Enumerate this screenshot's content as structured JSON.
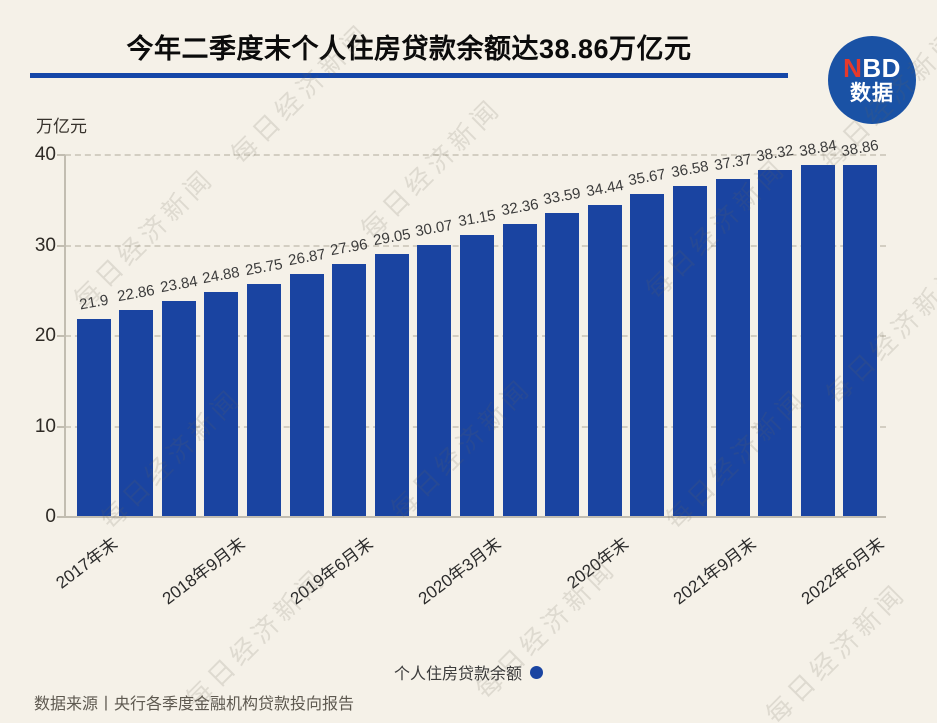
{
  "title": "今年二季度末个人住房贷款余额达38.86万亿元",
  "logo": {
    "n": "N",
    "bd": "BD",
    "line2": "数据"
  },
  "watermark_text": "每日经济新闻",
  "colors": {
    "background": "#f5f1e8",
    "bar": "#1a44a1",
    "accent_blue": "#1547a8",
    "logo_blue": "#1a52a5",
    "logo_red": "#e6392b",
    "grid": "#d3cec2",
    "axis": "#c2bdb1"
  },
  "chart_data": {
    "type": "bar",
    "title": "今年二季度末个人住房贷款余额达38.86万亿元",
    "xlabel": "",
    "ylabel": "万亿元",
    "ylim": [
      0,
      40
    ],
    "y_ticks": [
      0,
      10,
      20,
      30,
      40
    ],
    "grid": "dashed horizontal",
    "legend": "个人住房贷款余额",
    "legend_position": "bottom-center",
    "values": [
      21.9,
      22.86,
      23.84,
      24.88,
      25.75,
      26.87,
      27.96,
      29.05,
      30.07,
      31.15,
      32.36,
      33.59,
      34.44,
      35.67,
      36.58,
      37.37,
      38.32,
      38.84,
      38.86
    ],
    "x_tick_labels": [
      "2017年末",
      "2018年9月末",
      "2019年6月末",
      "2020年3月末",
      "2020年末",
      "2021年9月末",
      "2022年6月末"
    ],
    "x_tick_bar_indices": [
      0,
      3,
      6,
      9,
      12,
      15,
      18
    ]
  },
  "footer": {
    "source": "数据来源丨央行各季度金融机构贷款投向报告"
  }
}
